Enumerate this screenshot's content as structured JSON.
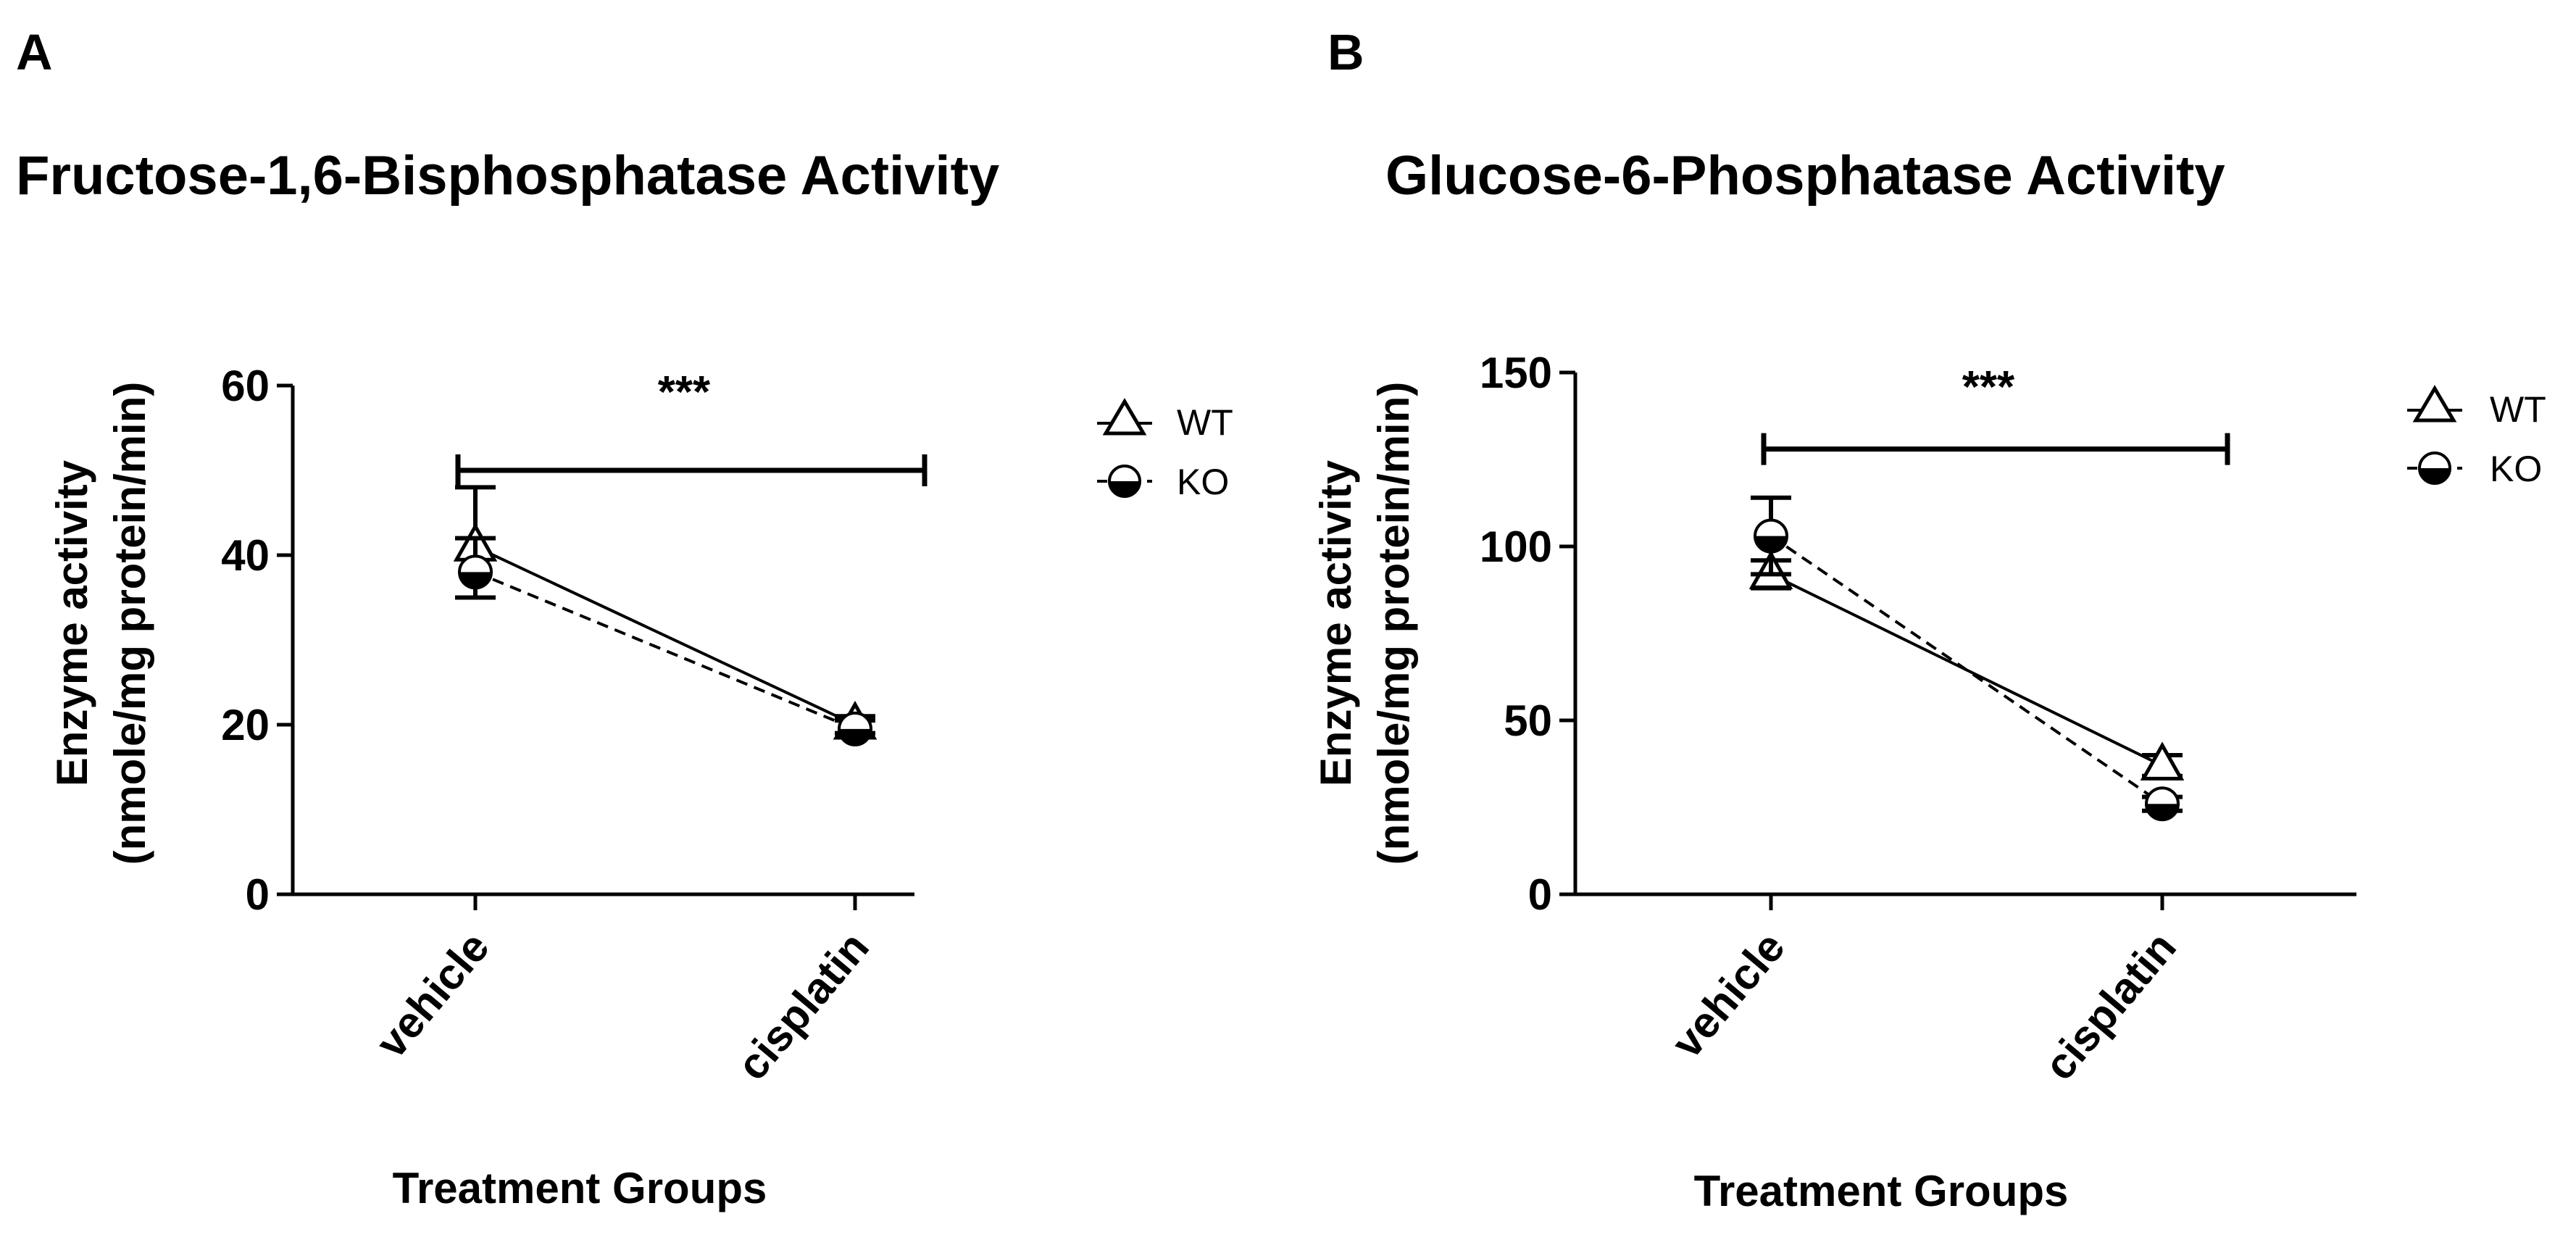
{
  "chart_data": [
    {
      "type": "line",
      "panel_label": "A",
      "title": "Fructose-1,6-Bisphosphatase Activity",
      "xlabel": "Treatment Groups",
      "ylabel": "Enzyme activity",
      "ylabel2": "(nmole/mg protein/min)",
      "ylim": [
        0,
        60
      ],
      "yticks": [
        "0",
        "20",
        "40",
        "60"
      ],
      "categories": [
        "vehicle",
        "cisplatin"
      ],
      "series": [
        {
          "name": "WT",
          "marker": "triangle-open",
          "line": "solid",
          "values": [
            41,
            20
          ],
          "error": [
            [
              35,
              48
            ],
            [
              19,
              21
            ]
          ]
        },
        {
          "name": "KO",
          "marker": "circle-half",
          "line": "dashed",
          "values": [
            38,
            19.5
          ],
          "error": [
            [
              35,
              42
            ],
            [
              19,
              20.5
            ]
          ]
        }
      ],
      "legend_position": "right",
      "significance": {
        "label": "***",
        "value": 50
      }
    },
    {
      "type": "line",
      "panel_label": "B",
      "title": "Glucose-6-Phosphatase Activity",
      "xlabel": "Treatment Groups",
      "ylabel": "Enzyme activity",
      "ylabel2": "(nmole/mg protein/min)",
      "ylim": [
        0,
        150
      ],
      "yticks": [
        "0",
        "50",
        "100",
        "150"
      ],
      "categories": [
        "vehicle",
        "cisplatin"
      ],
      "series": [
        {
          "name": "WT",
          "marker": "triangle-open",
          "line": "solid",
          "values": [
            92,
            37
          ],
          "error": [
            [
              88,
              96
            ],
            [
              34,
              40
            ]
          ]
        },
        {
          "name": "KO",
          "marker": "circle-half",
          "line": "dashed",
          "values": [
            103,
            26
          ],
          "error": [
            [
              92,
              114
            ],
            [
              24,
              28
            ]
          ]
        }
      ],
      "legend_position": "right",
      "significance": {
        "label": "***",
        "value": 128
      }
    }
  ]
}
